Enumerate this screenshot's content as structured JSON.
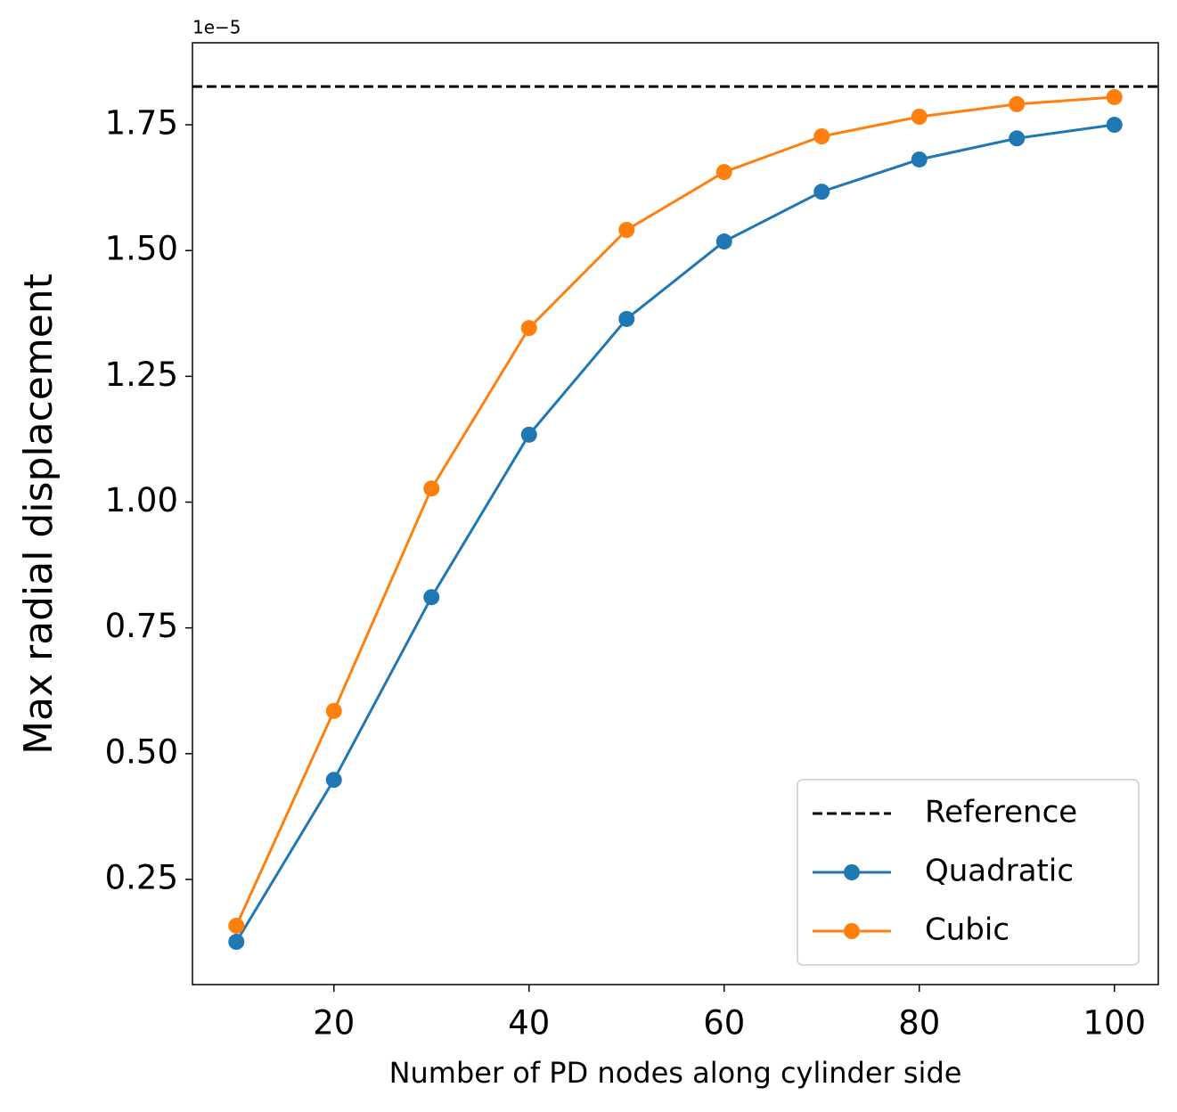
{
  "chart_data": {
    "type": "line",
    "x_label": "Number of PD nodes along cylinder side",
    "y_label": "Max radial displacement",
    "y_offset_label": "1e−5",
    "x": [
      10,
      20,
      30,
      40,
      50,
      60,
      70,
      80,
      90,
      100
    ],
    "reference": {
      "name": "Reference",
      "value": 1.826,
      "color": "#000000"
    },
    "series": [
      {
        "name": "Quadratic",
        "color": "#1f77b4",
        "values": [
          0.126,
          0.448,
          0.811,
          1.134,
          1.364,
          1.518,
          1.617,
          1.681,
          1.723,
          1.75
        ]
      },
      {
        "name": "Cubic",
        "color": "#ff7f0e",
        "values": [
          0.158,
          0.585,
          1.027,
          1.346,
          1.541,
          1.656,
          1.727,
          1.766,
          1.791,
          1.805
        ]
      }
    ],
    "xlim": [
      5.5,
      104.5
    ],
    "ylim": [
      0.041,
      1.913
    ],
    "xticks": [
      20,
      40,
      60,
      80,
      100
    ],
    "yticks": [
      {
        "value": 0.25,
        "label": "0.25"
      },
      {
        "value": 0.5,
        "label": "0.50"
      },
      {
        "value": 0.75,
        "label": "0.75"
      },
      {
        "value": 1.0,
        "label": "1.00"
      },
      {
        "value": 1.25,
        "label": "1.25"
      },
      {
        "value": 1.5,
        "label": "1.50"
      },
      {
        "value": 1.75,
        "label": "1.75"
      }
    ],
    "legend_position": "lower right",
    "grid": false
  }
}
